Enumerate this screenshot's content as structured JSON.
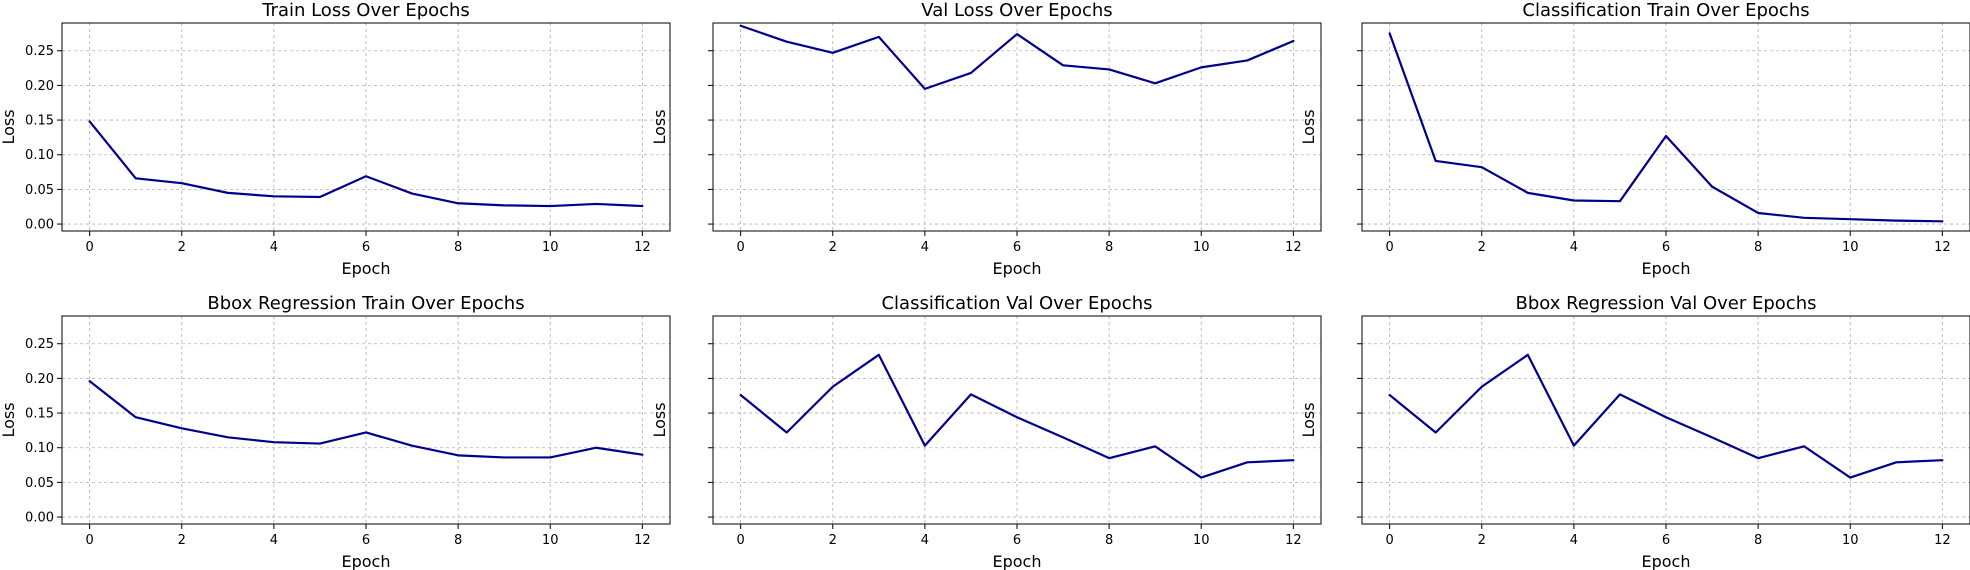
{
  "chart_data": [
    {
      "type": "line",
      "title": "Train Loss Over Epochs",
      "xlabel": "Epoch",
      "ylabel": "Loss",
      "xlim": [
        -0.6,
        12.6
      ],
      "ylim": [
        -0.01,
        0.29
      ],
      "xticks": [
        0,
        2,
        4,
        6,
        8,
        10,
        12
      ],
      "yticks": [
        0.0,
        0.05,
        0.1,
        0.15,
        0.2,
        0.25
      ],
      "ytick_labels": [
        "0.00",
        "0.05",
        "0.10",
        "0.15",
        "0.20",
        "0.25"
      ],
      "grid": true,
      "color": "#00008b",
      "series": [
        {
          "x": [
            0,
            1,
            2,
            3,
            4,
            5,
            6,
            7,
            8,
            9,
            10,
            11,
            12
          ],
          "values": [
            0.148,
            0.066,
            0.059,
            0.045,
            0.04,
            0.039,
            0.069,
            0.044,
            0.03,
            0.027,
            0.026,
            0.029,
            0.026
          ]
        }
      ]
    },
    {
      "type": "line",
      "title": "Val Loss Over Epochs",
      "xlabel": "Epoch",
      "ylabel": "Loss",
      "xlim": [
        -0.6,
        12.6
      ],
      "ylim": [
        -0.01,
        0.29
      ],
      "xticks": [
        0,
        2,
        4,
        6,
        8,
        10,
        12
      ],
      "yticks": [
        0.0,
        0.05,
        0.1,
        0.15,
        0.2,
        0.25
      ],
      "ytick_labels": [],
      "grid": true,
      "color": "#00008b",
      "series": [
        {
          "x": [
            0,
            1,
            2,
            3,
            4,
            5,
            6,
            7,
            8,
            9,
            10,
            11,
            12
          ],
          "values": [
            0.286,
            0.263,
            0.247,
            0.27,
            0.195,
            0.218,
            0.274,
            0.229,
            0.223,
            0.203,
            0.226,
            0.236,
            0.264
          ]
        }
      ]
    },
    {
      "type": "line",
      "title": "Classification Train Over Epochs",
      "xlabel": "Epoch",
      "ylabel": "Loss",
      "xlim": [
        -0.6,
        12.6
      ],
      "ylim": [
        -0.01,
        0.29
      ],
      "xticks": [
        0,
        2,
        4,
        6,
        8,
        10,
        12
      ],
      "yticks": [
        0.0,
        0.05,
        0.1,
        0.15,
        0.2,
        0.25
      ],
      "ytick_labels": [],
      "grid": true,
      "color": "#00008b",
      "series": [
        {
          "x": [
            0,
            1,
            2,
            3,
            4,
            5,
            6,
            7,
            8,
            9,
            10,
            11,
            12
          ],
          "values": [
            0.275,
            0.091,
            0.082,
            0.045,
            0.034,
            0.033,
            0.127,
            0.054,
            0.016,
            0.009,
            0.007,
            0.005,
            0.004
          ]
        }
      ]
    },
    {
      "type": "line",
      "title": "Bbox Regression Train Over Epochs",
      "xlabel": "Epoch",
      "ylabel": "Loss",
      "xlim": [
        -0.6,
        12.6
      ],
      "ylim": [
        -0.01,
        0.29
      ],
      "xticks": [
        0,
        2,
        4,
        6,
        8,
        10,
        12
      ],
      "yticks": [
        0.0,
        0.05,
        0.1,
        0.15,
        0.2,
        0.25
      ],
      "ytick_labels": [
        "0.00",
        "0.05",
        "0.10",
        "0.15",
        "0.20",
        "0.25"
      ],
      "grid": true,
      "color": "#00008b",
      "series": [
        {
          "x": [
            0,
            1,
            2,
            3,
            4,
            5,
            6,
            7,
            8,
            9,
            10,
            11,
            12
          ],
          "values": [
            0.196,
            0.144,
            0.128,
            0.115,
            0.108,
            0.106,
            0.122,
            0.103,
            0.089,
            0.086,
            0.086,
            0.1,
            0.09
          ]
        }
      ]
    },
    {
      "type": "line",
      "title": "Classification Val Over Epochs",
      "xlabel": "Epoch",
      "ylabel": "Loss",
      "xlim": [
        -0.6,
        12.6
      ],
      "ylim": [
        -0.01,
        0.29
      ],
      "xticks": [
        0,
        2,
        4,
        6,
        8,
        10,
        12
      ],
      "yticks": [
        0.0,
        0.05,
        0.1,
        0.15,
        0.2,
        0.25
      ],
      "ytick_labels": [],
      "grid": true,
      "color": "#00008b",
      "series": [
        {
          "x": [
            0,
            1,
            2,
            3,
            4,
            5,
            6,
            7,
            8,
            9,
            10,
            11,
            12
          ],
          "values": [
            0.176,
            0.122,
            0.188,
            0.234,
            0.103,
            0.177,
            0.144,
            0.115,
            0.085,
            0.102,
            0.057,
            0.079,
            0.082
          ]
        }
      ]
    },
    {
      "type": "line",
      "title": "Bbox Regression Val Over Epochs",
      "xlabel": "Epoch",
      "ylabel": "Loss",
      "xlim": [
        -0.6,
        12.6
      ],
      "ylim": [
        -0.01,
        0.29
      ],
      "xticks": [
        0,
        2,
        4,
        6,
        8,
        10,
        12
      ],
      "yticks": [
        0.0,
        0.05,
        0.1,
        0.15,
        0.2,
        0.25
      ],
      "ytick_labels": [],
      "grid": true,
      "color": "#00008b",
      "series": [
        {
          "x": [
            0,
            1,
            2,
            3,
            4,
            5,
            6,
            7,
            8,
            9,
            10,
            11,
            12
          ],
          "values": [
            0.176,
            0.122,
            0.188,
            0.234,
            0.103,
            0.177,
            0.144,
            0.115,
            0.085,
            0.102,
            0.057,
            0.079,
            0.082
          ]
        }
      ]
    }
  ]
}
